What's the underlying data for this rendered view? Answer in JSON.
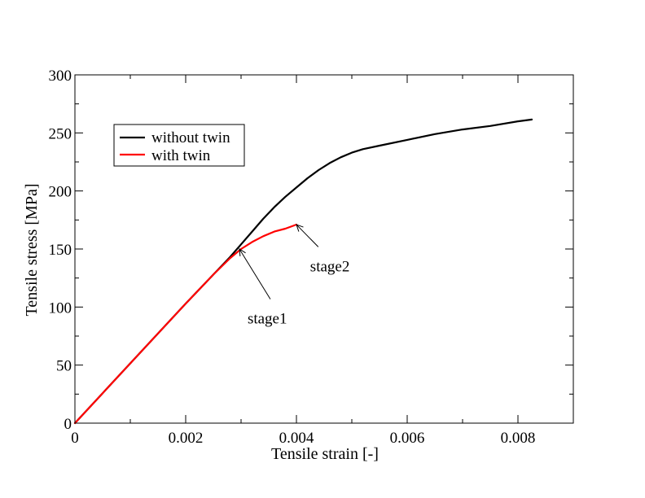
{
  "chart_data": {
    "type": "line",
    "title": "",
    "xlabel": "Tensile strain [-]",
    "ylabel": "Tensile stress [MPa]",
    "xlim": [
      0,
      0.009
    ],
    "ylim": [
      0,
      300
    ],
    "x_ticks": [
      0,
      0.002,
      0.004,
      0.006,
      0.008
    ],
    "x_tick_labels": [
      "0",
      "0.002",
      "0.004",
      "0.006",
      "0.008"
    ],
    "y_ticks": [
      0,
      50,
      100,
      150,
      200,
      250,
      300
    ],
    "y_tick_labels": [
      "0",
      "50",
      "100",
      "150",
      "200",
      "250",
      "300"
    ],
    "grid": false,
    "legend_position": "top-left",
    "series": [
      {
        "name": "without twin",
        "color": "#000000",
        "x": [
          0,
          0.001,
          0.002,
          0.0025,
          0.0028,
          0.003,
          0.0032,
          0.0034,
          0.0036,
          0.0038,
          0.004,
          0.0042,
          0.0044,
          0.0046,
          0.0048,
          0.005,
          0.0052,
          0.0055,
          0.006,
          0.0065,
          0.007,
          0.0075,
          0.008,
          0.00825
        ],
        "y": [
          0,
          51.5,
          103,
          128,
          143,
          154,
          165,
          176,
          186,
          195,
          203,
          211,
          218,
          224,
          229,
          233,
          236,
          239,
          244,
          249,
          253,
          256,
          260,
          261.5
        ]
      },
      {
        "name": "with twin",
        "color": "#ff0000",
        "x": [
          0,
          0.001,
          0.002,
          0.0025,
          0.0028,
          0.003,
          0.0032,
          0.0034,
          0.0036,
          0.0038,
          0.004
        ],
        "y": [
          0,
          51.5,
          103,
          128,
          142,
          150,
          156,
          161,
          165,
          167.5,
          171
        ]
      }
    ],
    "annotations": [
      {
        "text": "stage1",
        "text_x": 0.00297,
        "text_y": 90,
        "arrow_to_x": 0.00297,
        "arrow_to_y": 150
      },
      {
        "text": "stage2",
        "text_x": 0.0041,
        "text_y": 135,
        "arrow_to_x": 0.004,
        "arrow_to_y": 171
      }
    ]
  }
}
